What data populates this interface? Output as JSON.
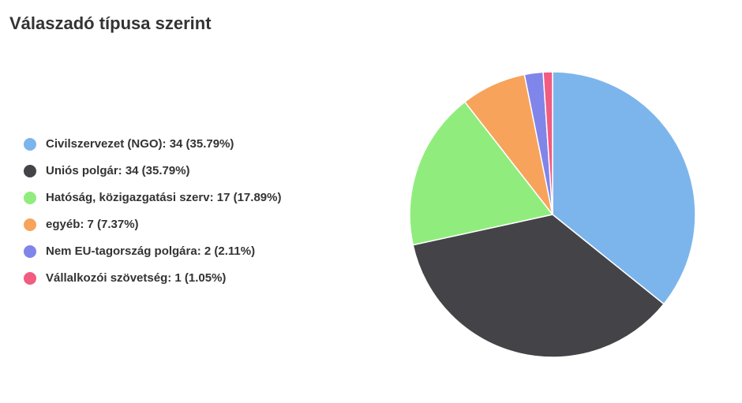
{
  "chart_data": {
    "type": "pie",
    "title": "Válaszadó típusa szerint",
    "categories": [
      "Civilszervezet (NGO): 34 (35.79%)",
      "Uniós polgár: 34 (35.79%)",
      "Hatóság, közigazgatási szerv: 17 (17.89%)",
      "egyéb: 7 (7.37%)",
      "Nem EU-tagország polgára: 2 (2.11%)",
      "Vállalkozói szövetség: 1 (1.05%)"
    ],
    "values": [
      34,
      34,
      17,
      7,
      2,
      1
    ],
    "colors": [
      "#7cb5ec",
      "#434348",
      "#90ed7d",
      "#f7a35c",
      "#8085e9",
      "#f15c80"
    ],
    "legend": "left"
  }
}
